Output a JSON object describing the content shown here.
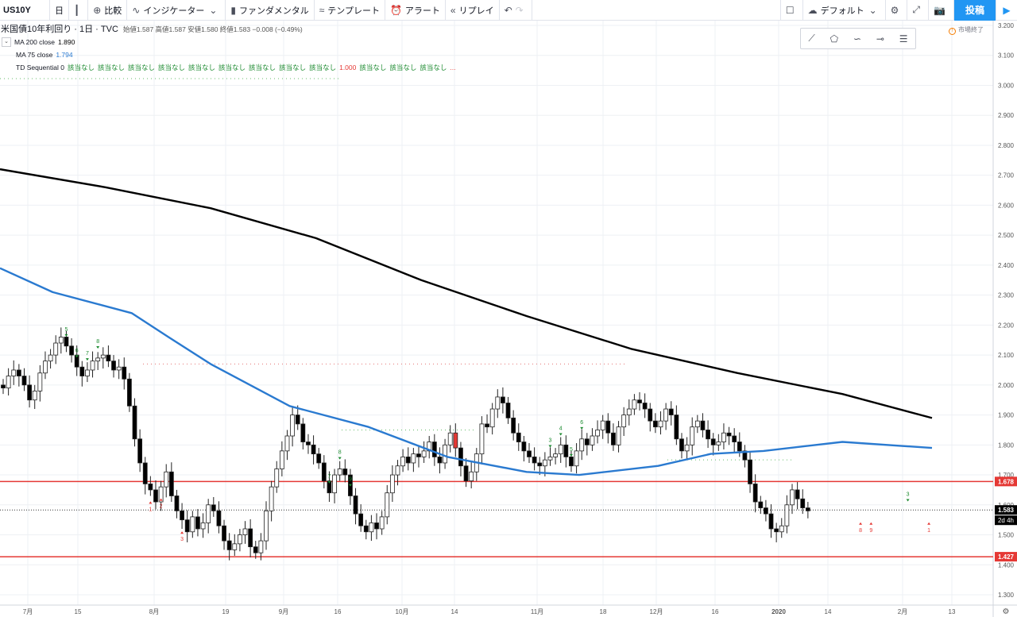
{
  "toolbar": {
    "symbol": "US10Y",
    "interval": "日",
    "compare": "比較",
    "indicators": "インジケーター",
    "fundamentals": "ファンダメンタル",
    "templates": "テンプレート",
    "alert": "アラート",
    "replay": "リプレイ",
    "layout": "デフォルト",
    "post": "投稿"
  },
  "legend": {
    "title": "米国債10年利回り · 1日 · TVC",
    "ohlc": "始値1.587  高値1.587  安値1.580  終値1.583  −0.008 (−0.49%)",
    "ma200_label": "MA 200 close",
    "ma200_value": "1.890",
    "ma75_label": "MA 75 close",
    "ma75_value": "1.794",
    "td_label": "TD Sequential 0",
    "td_values": [
      "該当なし",
      "該当なし",
      "該当なし",
      "該当なし",
      "該当なし",
      "該当なし",
      "該当なし",
      "該当なし",
      "該当なし",
      "1.000",
      "該当なし",
      "該当なし",
      "該当なし",
      "..."
    ],
    "market_status": "市場終了"
  },
  "chart_data": {
    "type": "candlestick",
    "title": "米国債10年利回り · 1日 · TVC",
    "ylim": [
      1.25,
      3.2
    ],
    "yticks": [
      "3.200",
      "3.100",
      "3.000",
      "2.900",
      "2.800",
      "2.700",
      "2.600",
      "2.500",
      "2.400",
      "2.300",
      "2.200",
      "2.100",
      "2.000",
      "1.900",
      "1.800",
      "1.700",
      "1.600",
      "1.500",
      "1.400",
      "1.300"
    ],
    "xticks": [
      "7月",
      "15",
      "8月",
      "19",
      "9月",
      "16",
      "10月",
      "14",
      "11月",
      "18",
      "12月",
      "16",
      "2020",
      "14",
      "2月",
      "13"
    ],
    "last_price": "1.583",
    "countdown": "2d 4h",
    "horizontal_lines": [
      {
        "label": "1.678",
        "value": 1.678,
        "color": "#e53935"
      },
      {
        "label": "1.427",
        "value": 1.427,
        "color": "#e53935"
      }
    ],
    "candles": [
      1.99,
      2.03,
      2.05,
      2.03,
      2.0,
      1.95,
      1.98,
      2.04,
      2.08,
      2.1,
      2.14,
      2.16,
      2.13,
      2.1,
      2.06,
      2.03,
      2.05,
      2.08,
      2.09,
      2.1,
      2.08,
      2.05,
      2.06,
      2.02,
      1.93,
      1.82,
      1.74,
      1.67,
      1.65,
      1.61,
      1.66,
      1.71,
      1.63,
      1.58,
      1.55,
      1.51,
      1.56,
      1.52,
      1.54,
      1.6,
      1.58,
      1.53,
      1.48,
      1.45,
      1.47,
      1.5,
      1.52,
      1.46,
      1.44,
      1.48,
      1.58,
      1.66,
      1.72,
      1.78,
      1.83,
      1.9,
      1.87,
      1.81,
      1.8,
      1.77,
      1.74,
      1.68,
      1.64,
      1.7,
      1.72,
      1.7,
      1.63,
      1.57,
      1.53,
      1.51,
      1.54,
      1.52,
      1.56,
      1.64,
      1.7,
      1.73,
      1.76,
      1.74,
      1.77,
      1.76,
      1.78,
      1.81,
      1.76,
      1.74,
      1.8,
      1.84,
      1.79,
      1.73,
      1.68,
      1.71,
      1.77,
      1.87,
      1.86,
      1.92,
      1.96,
      1.94,
      1.89,
      1.84,
      1.81,
      1.78,
      1.76,
      1.74,
      1.73,
      1.75,
      1.76,
      1.77,
      1.8,
      1.76,
      1.73,
      1.78,
      1.82,
      1.8,
      1.83,
      1.85,
      1.88,
      1.84,
      1.8,
      1.86,
      1.9,
      1.92,
      1.95,
      1.94,
      1.92,
      1.88,
      1.86,
      1.88,
      1.92,
      1.9,
      1.82,
      1.78,
      1.8,
      1.86,
      1.88,
      1.85,
      1.82,
      1.8,
      1.81,
      1.84,
      1.83,
      1.81,
      1.78,
      1.75,
      1.67,
      1.61,
      1.59,
      1.57,
      1.52,
      1.51,
      1.53,
      1.6,
      1.65,
      1.62,
      1.59,
      1.58
    ],
    "series": [
      {
        "name": "MA 200 close",
        "color": "#000000",
        "points": [
          [
            0,
            2.72
          ],
          [
            20,
            2.66
          ],
          [
            40,
            2.59
          ],
          [
            60,
            2.49
          ],
          [
            80,
            2.35
          ],
          [
            100,
            2.23
          ],
          [
            120,
            2.12
          ],
          [
            140,
            2.04
          ],
          [
            160,
            1.97
          ],
          [
            177,
            1.89
          ]
        ]
      },
      {
        "name": "MA 75 close",
        "color": "#2a7ad0",
        "points": [
          [
            0,
            2.39
          ],
          [
            10,
            2.31
          ],
          [
            25,
            2.24
          ],
          [
            32,
            2.16
          ],
          [
            40,
            2.07
          ],
          [
            55,
            1.93
          ],
          [
            70,
            1.86
          ],
          [
            85,
            1.76
          ],
          [
            100,
            1.71
          ],
          [
            110,
            1.7
          ],
          [
            125,
            1.73
          ],
          [
            135,
            1.77
          ],
          [
            145,
            1.78
          ],
          [
            160,
            1.81
          ],
          [
            177,
            1.79
          ]
        ]
      }
    ],
    "td_marks": [
      {
        "x": 12,
        "label": "5",
        "color": "#1b8a2f"
      },
      {
        "x": 14,
        "label": "6",
        "color": "#1b8a2f"
      },
      {
        "x": 16,
        "label": "7",
        "color": "#1b8a2f"
      },
      {
        "x": 18,
        "label": "8",
        "color": "#1b8a2f"
      },
      {
        "x": 28,
        "label": "1",
        "color": "#e53935"
      },
      {
        "x": 30,
        "label": "2",
        "color": "#e53935"
      },
      {
        "x": 34,
        "label": "3",
        "color": "#e53935"
      },
      {
        "x": 62,
        "label": "7",
        "color": "#1b8a2f"
      },
      {
        "x": 64,
        "label": "8",
        "color": "#1b8a2f"
      },
      {
        "x": 66,
        "label": "9",
        "color": "#1b8a2f"
      },
      {
        "x": 104,
        "label": "3",
        "color": "#1b8a2f"
      },
      {
        "x": 106,
        "label": "4",
        "color": "#1b8a2f"
      },
      {
        "x": 108,
        "label": "5",
        "color": "#1b8a2f"
      },
      {
        "x": 110,
        "label": "6",
        "color": "#1b8a2f"
      },
      {
        "x": 163,
        "label": "8",
        "color": "#e53935"
      },
      {
        "x": 165,
        "label": "9",
        "color": "#e53935"
      },
      {
        "x": 172,
        "label": "3",
        "color": "#1b8a2f"
      },
      {
        "x": 176,
        "label": "1",
        "color": "#e53935"
      }
    ]
  }
}
